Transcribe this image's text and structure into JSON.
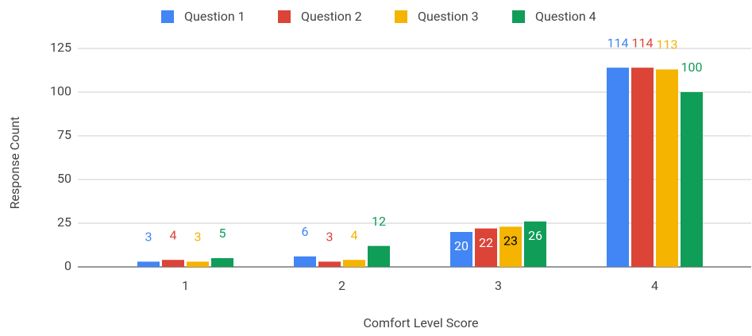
{
  "chart_data": {
    "type": "bar",
    "categories": [
      "1",
      "2",
      "3",
      "4"
    ],
    "series": [
      {
        "name": "Question 1",
        "color": "#4285f4",
        "values": [
          3,
          6,
          20,
          114
        ]
      },
      {
        "name": "Question 2",
        "color": "#db4437",
        "values": [
          4,
          3,
          22,
          114
        ]
      },
      {
        "name": "Question 3",
        "color": "#f4b400",
        "values": [
          3,
          4,
          23,
          113
        ]
      },
      {
        "name": "Question 4",
        "color": "#0f9d58",
        "values": [
          5,
          12,
          26,
          100
        ]
      }
    ],
    "x_label": "Comfort Level Score",
    "y_label": "Response Count",
    "ylim": [
      0,
      125
    ],
    "yticks": [
      0,
      25,
      50,
      75,
      100,
      125
    ],
    "grid": true,
    "legend": "top"
  }
}
